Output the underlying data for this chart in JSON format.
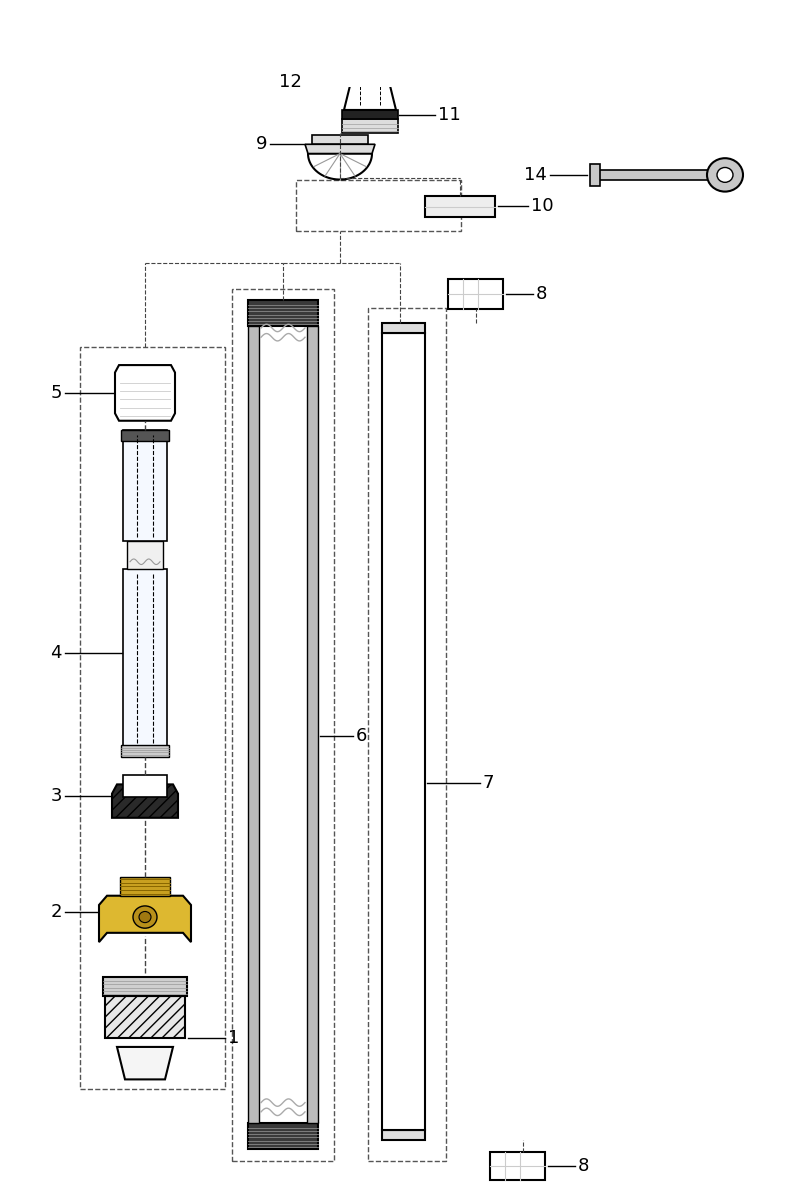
{
  "bg_color": "#ffffff",
  "line_color": "#000000",
  "gray": "#888888",
  "lgray": "#cccccc",
  "dgray": "#444444",
  "gold": "#c8a020",
  "lgold": "#ddb830",
  "figsize": [
    8.0,
    12.0
  ],
  "dpi": 100
}
